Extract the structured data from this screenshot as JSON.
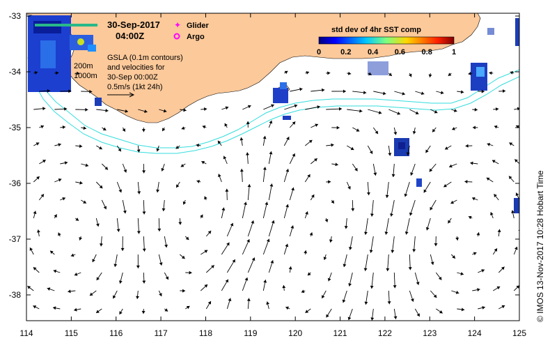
{
  "map": {
    "timestamp_date": "30-Sep-2017",
    "timestamp_time": "04:00Z",
    "legend_glider": "Glider",
    "legend_argo": "Argo",
    "depth_label_200": "200m",
    "depth_label_1000": "1000m",
    "gsla_lines": [
      "GSLA (0.1m contours)",
      "and velocities for",
      "30-Sep 00:00Z",
      "0.5m/s (1kt 24h)"
    ],
    "colorbar_title": "std dev of 4hr SST comp",
    "colorbar_ticks": [
      "0",
      "0.2",
      "0.4",
      "0.6",
      "0.8",
      "1"
    ],
    "credit": "© IMOS 13-Nov-2017 10:28 Hobart Time",
    "x_ticks": [
      "114",
      "115",
      "116",
      "117",
      "118",
      "119",
      "120",
      "121",
      "122",
      "123",
      "124",
      "125"
    ],
    "y_ticks": [
      "-33",
      "-34",
      "-35",
      "-36",
      "-37",
      "-38"
    ],
    "lon_range": [
      114,
      125
    ],
    "lat_range": [
      -38.5,
      -33
    ],
    "colors": {
      "land": "#fcc99a",
      "ocean": "#ffffff",
      "isobath": "#33dddd",
      "glider": "#ff00ff",
      "argo": "#ff00ff"
    }
  }
}
